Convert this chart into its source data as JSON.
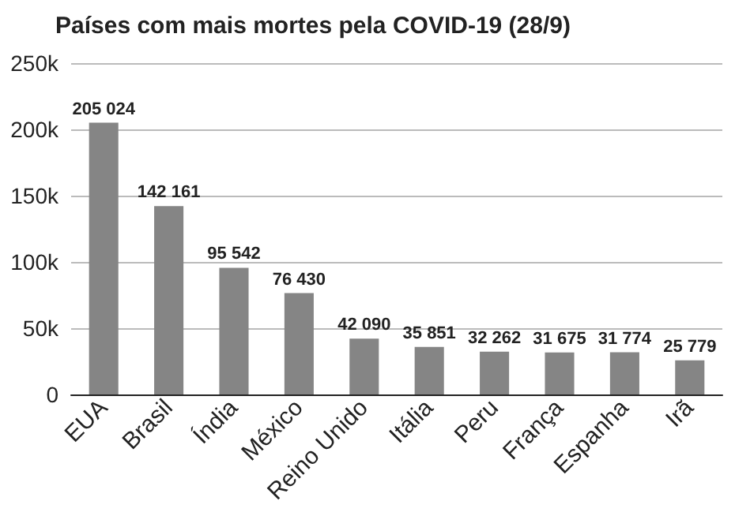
{
  "chart_data": {
    "type": "bar",
    "title": "Países com mais mortes pela COVID-19 (28/9)",
    "categories": [
      "EUA",
      "Brasil",
      "Índia",
      "México",
      "Reino Unido",
      "Itália",
      "Peru",
      "França",
      "Espanha",
      "Irã"
    ],
    "values": [
      205024,
      142161,
      95542,
      76430,
      42090,
      35851,
      32262,
      31675,
      31774,
      25779
    ],
    "value_labels": [
      "205 024",
      "142 161",
      "95 542",
      "76 430",
      "42 090",
      "35 851",
      "32 262",
      "31 675",
      "31 774",
      "25 779"
    ],
    "color": "#858585",
    "ylim": [
      0,
      250000
    ],
    "yticks": [
      0,
      {
        "value": 50000,
        "label": "50k"
      },
      {
        "value": 100000,
        "label": "100k"
      },
      {
        "value": 150000,
        "label": "150k"
      },
      {
        "value": 200000,
        "label": "200k"
      },
      {
        "value": 250000,
        "label": "250k"
      }
    ],
    "grid": "y"
  }
}
